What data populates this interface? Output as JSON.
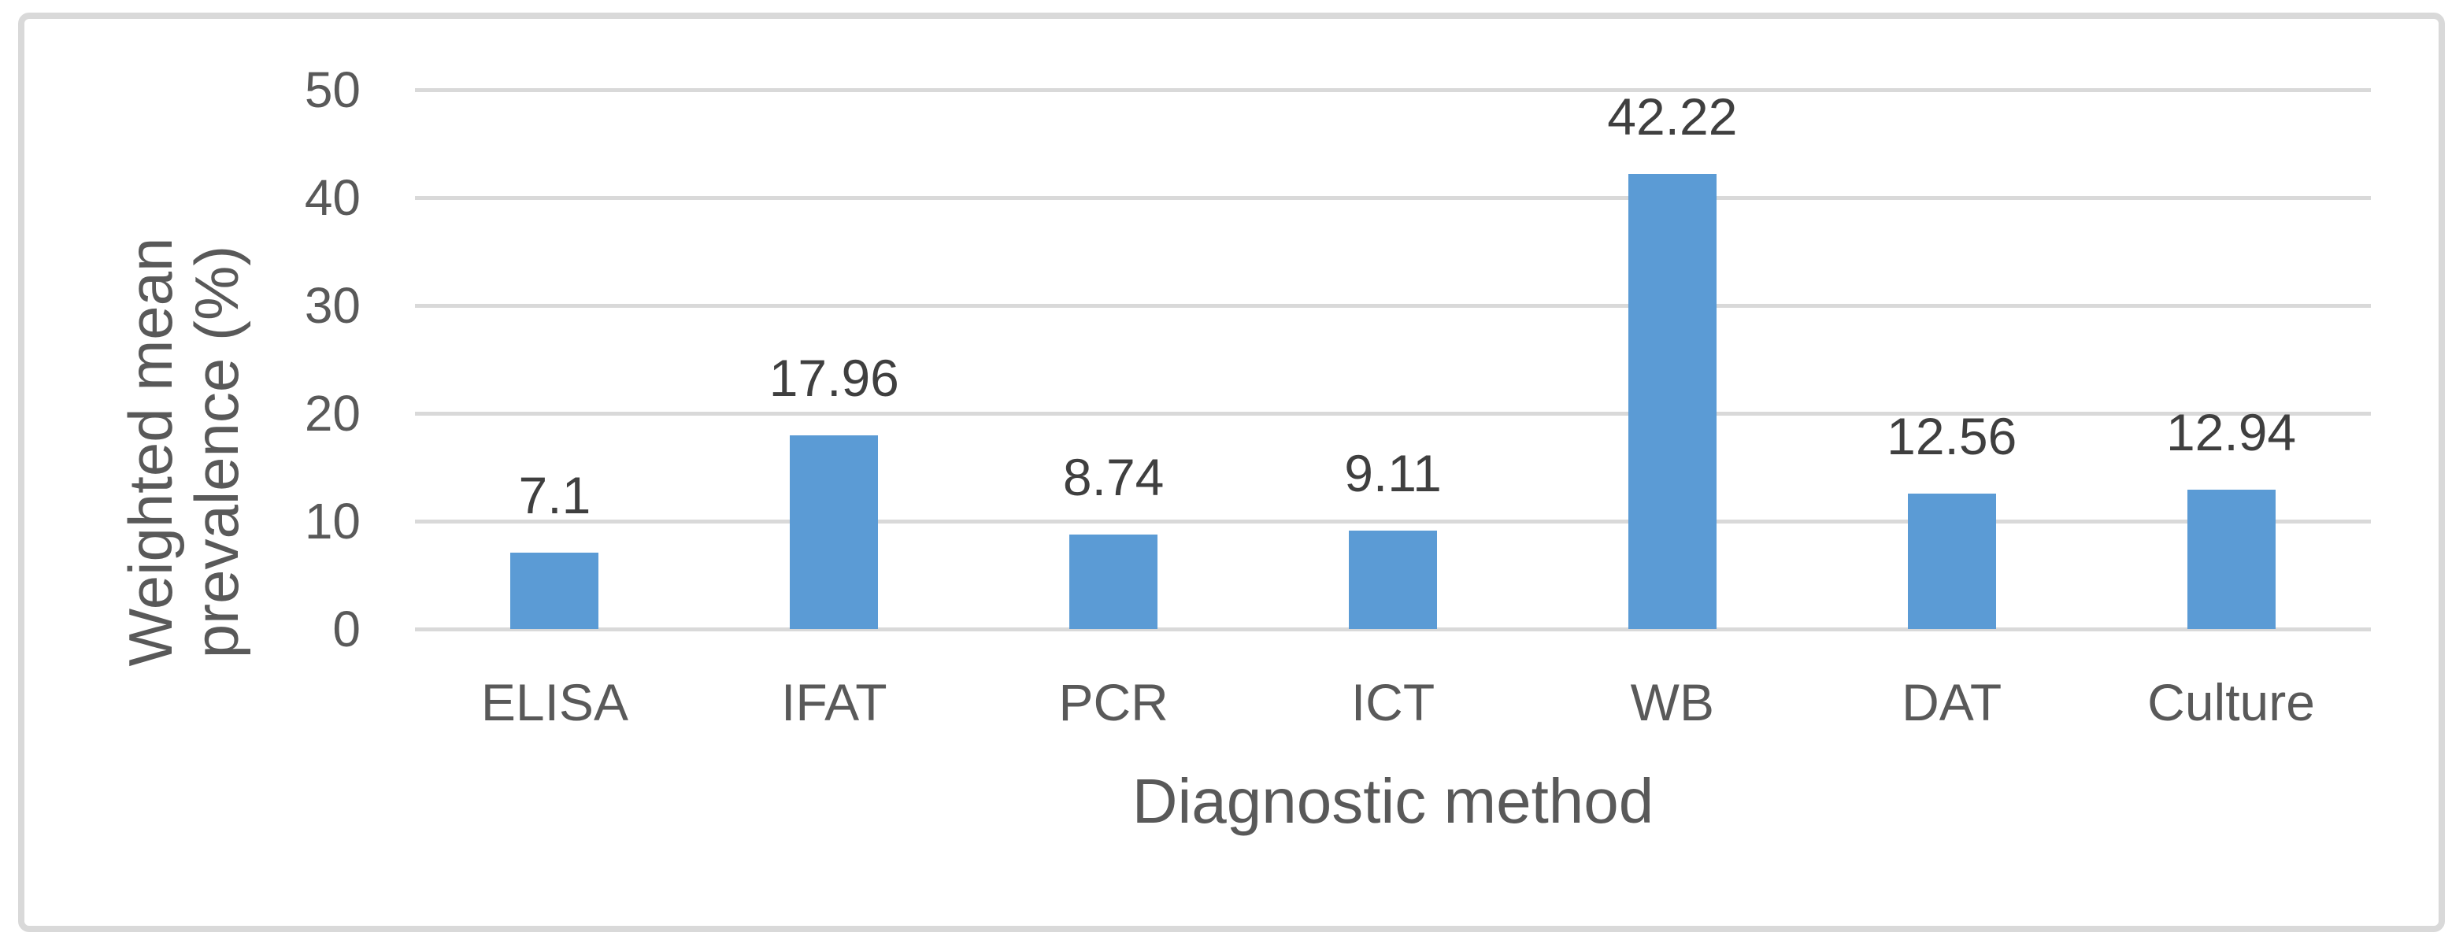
{
  "chart_data": {
    "type": "bar",
    "title": "",
    "categories": [
      "ELISA",
      "IFAT",
      "PCR",
      "ICT",
      "WB",
      "DAT",
      "Culture"
    ],
    "values": [
      7.1,
      17.96,
      8.74,
      9.11,
      42.22,
      12.56,
      12.94
    ],
    "data_labels": [
      "7.1",
      "17.96",
      "8.74",
      "9.11",
      "42.22",
      "12.56",
      "12.94"
    ],
    "xlabel": "Diagnostic method",
    "ylabel": "Weighted mean prevalence (%)",
    "ylabel_lines": [
      "Weighted mean",
      "prevalence (%)"
    ],
    "ylim": [
      0,
      50
    ],
    "yticks": [
      0,
      10,
      20,
      30,
      40,
      50
    ],
    "grid": "horizontal-gridlines-on",
    "legend_position": "none",
    "colors": {
      "bar": "#5B9BD5",
      "gridline": "#D9D9D9",
      "frame_border": "#D9D9D9",
      "axis_text": "#595959",
      "data_label_text": "#3F3F3F",
      "background": "#FFFFFF"
    }
  }
}
